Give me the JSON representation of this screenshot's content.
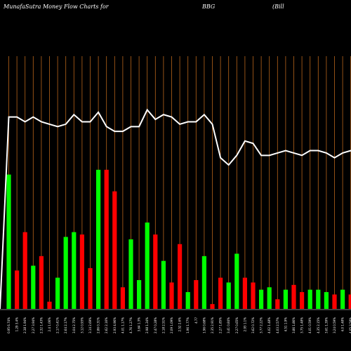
{
  "header": {
    "left": "MunafaSutra  Money Flow  Charts for",
    "middle": "BBG",
    "right": "(Bill"
  },
  "colors": {
    "background": "#000000",
    "up": "#00ff00",
    "down": "#ff0000",
    "line": "#ffffff",
    "grid": "#b8651b"
  },
  "chart_data": {
    "type": "bar",
    "title": "MunafaSutra  Money Flow  Charts for BBG (Bill",
    "grid": true,
    "categories": [
      "0.95 6.74%",
      "1.29 3.4%",
      "2.38 1.94%",
      "2.27 3.94%",
      "2.32 1.43%",
      "2.4 1.06%",
      "2.17 0.41%",
      "2.64 2.17%",
      "3.04 2.75%",
      "3.12 0.93%",
      "3.14 2.69%",
      "2.86 0.31%",
      "2.62 2.16%",
      "2.93 4.96%",
      "4.01 1.17%",
      "4.76 1.27%",
      "3.64 1.3%",
      "2.98 1.34%",
      "2.47 0.28%",
      "2.18 2.51%",
      "2.09 1.09%",
      "2.52 2.6%",
      "1.96 1.77%",
      "4.77",
      "1.96 0.68%",
      "2.35 2.91%",
      "2.27 1.85%",
      "3.41 0.84%",
      "2.27 0.65%",
      "2.93 1.1%",
      "3.62 0.72%",
      "3.77 2.22%",
      "4.02 1.48%",
      "4.03 2.57%",
      "4.51 1.9%",
      "3.86 1.86%",
      "3.75 1.48%",
      "4.01 0.59%",
      "4.35 2.15%",
      "3.61 1.39%",
      "3.24 0.59%",
      "4.0 1.48%",
      "4.05 3.58%",
      "4.08 0.37%",
      "3.96 3.07%",
      "3.84 2.18%"
    ],
    "series": [
      {
        "values": [
          56,
          16,
          32,
          18,
          22,
          3,
          13,
          30,
          32,
          31,
          17,
          58,
          58,
          49,
          9,
          29,
          12,
          36,
          31,
          20,
          11,
          27,
          7,
          12,
          22,
          2,
          13,
          11,
          23,
          13,
          11,
          8,
          9,
          4,
          8,
          10,
          7,
          8,
          8,
          7,
          6,
          8,
          6,
          4,
          7,
          14
        ],
        "directions": [
          "up",
          "down",
          "down",
          "up",
          "down",
          "down",
          "up",
          "up",
          "up",
          "down",
          "down",
          "up",
          "down",
          "down",
          "down",
          "up",
          "up",
          "up",
          "down",
          "up",
          "down",
          "down",
          "up",
          "down",
          "up",
          "down",
          "down",
          "up",
          "up",
          "down",
          "down",
          "up",
          "up",
          "down",
          "up",
          "down",
          "down",
          "up",
          "up",
          "up",
          "down",
          "up",
          "down",
          "down",
          "up",
          "up"
        ]
      }
    ],
    "line_values": [
      80,
      80,
      78,
      80,
      78,
      77,
      76,
      77,
      81,
      78,
      78,
      82,
      76,
      74,
      74,
      76,
      76,
      83,
      79,
      81,
      80,
      77,
      78,
      78,
      81,
      77,
      63,
      60,
      64,
      70,
      69,
      64,
      64,
      65,
      66,
      65,
      64,
      66,
      66,
      65,
      63,
      65,
      66,
      62,
      66,
      66
    ],
    "ylim": [
      0,
      120
    ],
    "grid_lines_x": true,
    "legend": "none"
  }
}
